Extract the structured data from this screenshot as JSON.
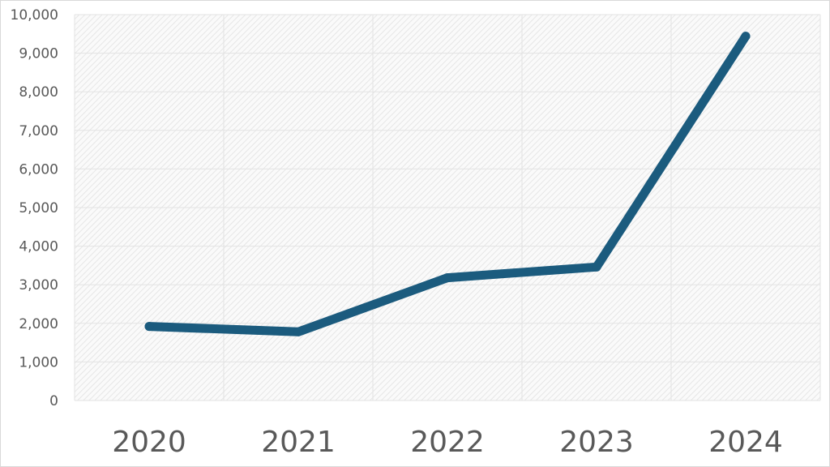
{
  "chart_data": {
    "type": "line",
    "title": "",
    "xlabel": "",
    "ylabel": "",
    "categories": [
      "2020",
      "2021",
      "2022",
      "2023",
      "2024"
    ],
    "series": [
      {
        "values": [
          1920,
          1780,
          3180,
          3460,
          9440
        ],
        "color": "#1b5b7e"
      }
    ],
    "ylim": [
      0,
      10000
    ],
    "yticks": [
      0,
      1000,
      2000,
      3000,
      4000,
      5000,
      6000,
      7000,
      8000,
      9000,
      10000
    ],
    "ytick_labels": [
      "0",
      "1,000",
      "2,000",
      "3,000",
      "4,000",
      "5,000",
      "6,000",
      "7,000",
      "8,000",
      "9,000",
      "10,000"
    ],
    "grid": true,
    "legend": "none",
    "plot_background": "hatched-light-gray",
    "grid_color": "#e3e3e3"
  }
}
